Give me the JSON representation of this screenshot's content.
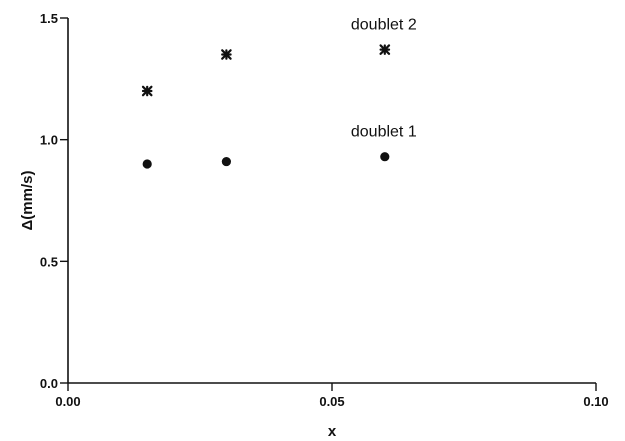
{
  "chart_data": {
    "type": "scatter",
    "xlabel": "x",
    "ylabel": "Δ(mm/s)",
    "xlim": [
      0.0,
      0.1
    ],
    "ylim": [
      0.0,
      1.5
    ],
    "xticks": [
      0.0,
      0.05,
      0.1
    ],
    "yticks": [
      0.0,
      0.5,
      1.0,
      1.5
    ],
    "xtick_labels": [
      "0.00",
      "0.05",
      "0.10"
    ],
    "ytick_labels": [
      "0.0",
      "0.5",
      "1.0",
      "1.5"
    ],
    "grid": false,
    "legend": "none",
    "series": [
      {
        "name": "doublet 2",
        "marker": "star",
        "points": [
          {
            "x": 0.015,
            "y": 1.2
          },
          {
            "x": 0.03,
            "y": 1.35
          },
          {
            "x": 0.06,
            "y": 1.37
          }
        ],
        "label_point": {
          "x": 0.06,
          "y": 1.37
        }
      },
      {
        "name": "doublet 1",
        "marker": "circle",
        "points": [
          {
            "x": 0.015,
            "y": 0.9
          },
          {
            "x": 0.03,
            "y": 0.91
          },
          {
            "x": 0.06,
            "y": 0.93
          }
        ],
        "label_point": {
          "x": 0.06,
          "y": 0.93
        }
      }
    ]
  }
}
